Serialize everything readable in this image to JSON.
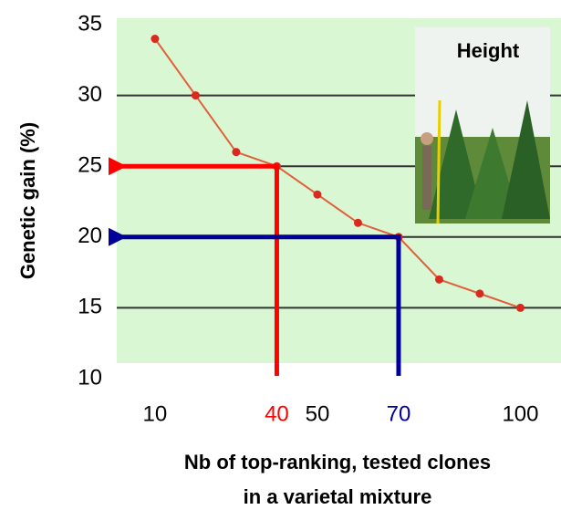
{
  "chart_data": {
    "type": "line",
    "xlabel": [
      "Nb of top-ranking, tested clones",
      "in a varietal mixture"
    ],
    "ylabel": "Genetic gain (%)",
    "x": [
      10,
      20,
      30,
      40,
      50,
      60,
      70,
      80,
      90,
      100
    ],
    "series": [
      {
        "color": "#e0603c",
        "marker_color": "#d92a20",
        "values": [
          34,
          30,
          26,
          25,
          23,
          21,
          20,
          17,
          16,
          15
        ]
      }
    ],
    "xlim": [
      0,
      110
    ],
    "xticks": [
      10,
      40,
      50,
      70,
      100
    ],
    "ylim": [
      10,
      35
    ],
    "yticks": [
      10,
      15,
      20,
      25,
      30,
      35
    ],
    "grid": true,
    "background": "#d9f7d2",
    "guides": [
      {
        "x": 40,
        "y": 25,
        "color": "#ff0000"
      },
      {
        "x": 70,
        "y": 20,
        "color": "#000099"
      }
    ],
    "inset_label": "Height"
  }
}
